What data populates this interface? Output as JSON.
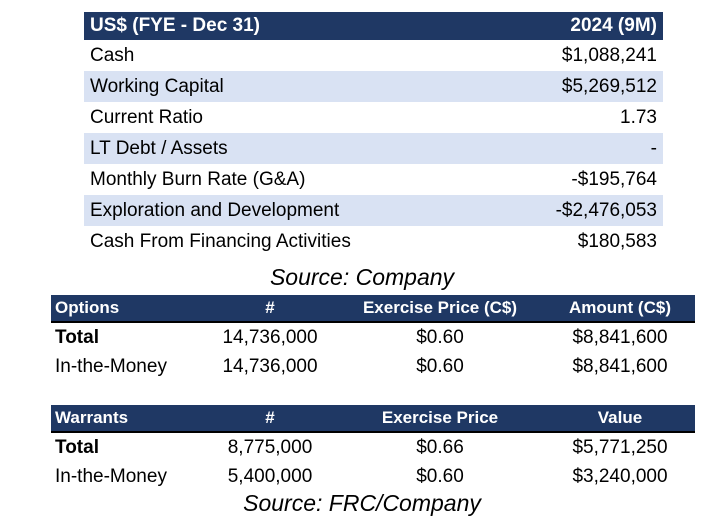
{
  "financials": {
    "header": {
      "label": "US$ (FYE - Dec 31)",
      "period": "2024 (9M)"
    },
    "rows": [
      {
        "label": "Cash",
        "value": "$1,088,241"
      },
      {
        "label": "Working Capital",
        "value": "$5,269,512"
      },
      {
        "label": "Current Ratio",
        "value": "1.73"
      },
      {
        "label": "LT Debt / Assets",
        "value": "-"
      },
      {
        "label": "Monthly Burn Rate (G&A)",
        "value": "-$195,764"
      },
      {
        "label": "Exploration and Development",
        "value": "-$2,476,053"
      },
      {
        "label": "Cash From Financing Activities",
        "value": "$180,583"
      }
    ],
    "source": "Source: Company"
  },
  "options": {
    "headers": [
      "Options",
      "#",
      "Exercise Price (C$)",
      "Amount (C$)"
    ],
    "rows": [
      [
        "Total",
        "14,736,000",
        "$0.60",
        "$8,841,600"
      ],
      [
        "In-the-Money",
        "14,736,000",
        "$0.60",
        "$8,841,600"
      ]
    ]
  },
  "warrants": {
    "headers": [
      "Warrants",
      "#",
      "Exercise Price",
      "Value"
    ],
    "rows": [
      [
        "Total",
        "8,775,000",
        "$0.66",
        "$5,771,250"
      ],
      [
        "In-the-Money",
        "5,400,000",
        "$0.60",
        "$3,240,000"
      ]
    ],
    "source": "Source: FRC/Company"
  }
}
